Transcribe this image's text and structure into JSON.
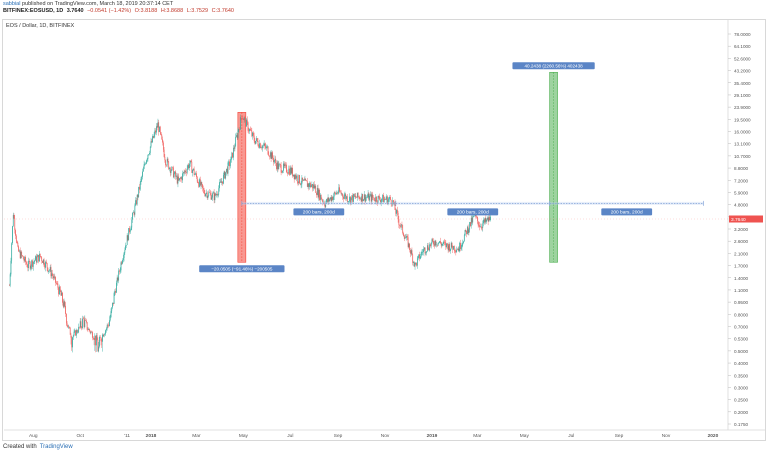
{
  "header": {
    "user": "sabbial",
    "published": "published on TradingView.com, March 18, 2019 20:37:14 CET",
    "symbol_line": "BITFINEX:EOSUSD, 1D",
    "price": "3.7640",
    "change": "−0.0541 (−1.42%)",
    "ohlc": [
      "O:3.8188",
      "H:3.8688",
      "L:3.7529",
      "C:3.7640"
    ],
    "ohlc_color": "#c0392b"
  },
  "chart_label": "EOS / Dollar, 1D, BITFINEX",
  "footer": {
    "created_with": "Created with",
    "brand": "TradingView"
  },
  "colors": {
    "up": "#26a69a",
    "down": "#ef5350",
    "measure_red": "#f44336",
    "measure_green": "#4caf50",
    "tag_bg": "#5b85c6",
    "dotted": "#7e9fd6",
    "price_tag": "#ef5350"
  },
  "chart_data": {
    "type": "candlestick",
    "title": "EOS / Dollar, 1D, BITFINEX",
    "y_scale": "log",
    "y_ticks": [
      "0.1750",
      "0.2000",
      "0.2500",
      "0.3000",
      "0.3500",
      "0.4000",
      "0.5000",
      "0.5300",
      "0.7000",
      "0.8000",
      "0.9500",
      "1.1000",
      "1.4000",
      "1.7000",
      "2.1000",
      "2.6000",
      "3.2000",
      "3.9000",
      "4.8000",
      "5.9000",
      "7.2000",
      "8.8000",
      "10.7000",
      "13.1000",
      "16.0000",
      "19.5000",
      "23.9000",
      "29.1000",
      "35.4000",
      "43.2000",
      "52.6000",
      "64.1000",
      "78.0000"
    ],
    "x_ticks": [
      "Aug",
      "Oct",
      "'11",
      "2018",
      "Mar",
      "May",
      "Jul",
      "Sep",
      "Nov",
      "2019",
      "Mar",
      "May",
      "Jul",
      "Sep",
      "Nov",
      "2020"
    ],
    "last_price": 3.764,
    "last_price_label": "3.7640",
    "price_path": [
      {
        "date": "2017-07-01",
        "price": 1.2
      },
      {
        "date": "2017-07-06",
        "price": 4.2
      },
      {
        "date": "2017-07-12",
        "price": 2.2
      },
      {
        "date": "2017-07-25",
        "price": 1.7
      },
      {
        "date": "2017-08-10",
        "price": 2.0
      },
      {
        "date": "2017-08-25",
        "price": 1.5
      },
      {
        "date": "2017-09-10",
        "price": 0.9
      },
      {
        "date": "2017-09-20",
        "price": 0.55
      },
      {
        "date": "2017-10-05",
        "price": 0.75
      },
      {
        "date": "2017-10-25",
        "price": 0.5
      },
      {
        "date": "2017-11-10",
        "price": 0.8
      },
      {
        "date": "2017-11-25",
        "price": 2.0
      },
      {
        "date": "2017-12-10",
        "price": 4.3
      },
      {
        "date": "2017-12-25",
        "price": 10.0
      },
      {
        "date": "2018-01-10",
        "price": 18.0
      },
      {
        "date": "2018-01-20",
        "price": 10.0
      },
      {
        "date": "2018-02-06",
        "price": 7.0
      },
      {
        "date": "2018-02-20",
        "price": 9.5
      },
      {
        "date": "2018-03-10",
        "price": 6.0
      },
      {
        "date": "2018-03-25",
        "price": 5.5
      },
      {
        "date": "2018-04-15",
        "price": 10.0
      },
      {
        "date": "2018-04-29",
        "price": 21.0
      },
      {
        "date": "2018-05-15",
        "price": 14.0
      },
      {
        "date": "2018-06-01",
        "price": 12.0
      },
      {
        "date": "2018-06-15",
        "price": 9.0
      },
      {
        "date": "2018-07-01",
        "price": 8.5
      },
      {
        "date": "2018-07-15",
        "price": 7.0
      },
      {
        "date": "2018-08-01",
        "price": 6.5
      },
      {
        "date": "2018-08-15",
        "price": 4.9
      },
      {
        "date": "2018-09-01",
        "price": 6.0
      },
      {
        "date": "2018-09-15",
        "price": 5.3
      },
      {
        "date": "2018-10-01",
        "price": 5.5
      },
      {
        "date": "2018-10-25",
        "price": 5.3
      },
      {
        "date": "2018-11-10",
        "price": 5.2
      },
      {
        "date": "2018-11-20",
        "price": 3.5
      },
      {
        "date": "2018-12-01",
        "price": 2.5
      },
      {
        "date": "2018-12-10",
        "price": 1.7
      },
      {
        "date": "2018-12-20",
        "price": 2.2
      },
      {
        "date": "2019-01-05",
        "price": 2.6
      },
      {
        "date": "2019-01-20",
        "price": 2.4
      },
      {
        "date": "2019-02-05",
        "price": 2.3
      },
      {
        "date": "2019-02-15",
        "price": 3.1
      },
      {
        "date": "2019-02-25",
        "price": 3.9
      },
      {
        "date": "2019-03-05",
        "price": 3.4
      },
      {
        "date": "2019-03-18",
        "price": 3.764
      }
    ],
    "drawings": [
      {
        "kind": "price_range",
        "color": "red",
        "from_price": 21.9,
        "to_price": 1.8,
        "date": "2018-04-29",
        "label": "−20.0505 (−91.46%) −200505"
      },
      {
        "kind": "price_range",
        "color": "green",
        "from_price": 1.8,
        "to_price": 42.0,
        "date": "2019-06-08",
        "label": "40.2438 (2260.56%) 402438"
      },
      {
        "kind": "date_range",
        "from": "2018-04-29",
        "to": "2018-11-15",
        "price": 4.9,
        "label": "200 bars, 200d"
      },
      {
        "kind": "date_range",
        "from": "2018-11-15",
        "to": "2019-06-03",
        "price": 4.9,
        "label": "200 bars, 200d"
      },
      {
        "kind": "date_range",
        "from": "2019-06-03",
        "to": "2019-12-20",
        "price": 4.9,
        "label": "200 bars, 200d"
      }
    ]
  }
}
